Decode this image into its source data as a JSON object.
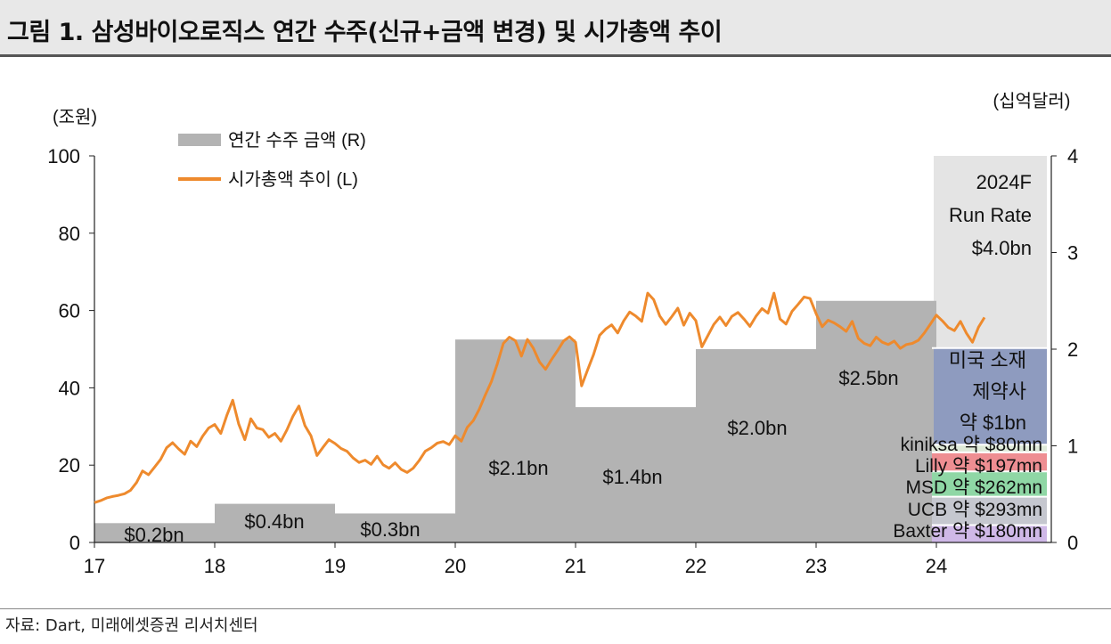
{
  "title": "그림 1. 삼성바이오로직스 연간 수주(신규+금액 변경) 및 시가총액 추이",
  "source": "자료: Dart, 미래에셋증권 리서치센터",
  "colors": {
    "bar": "#b3b3b3",
    "line": "#ee8a2d",
    "forecast": "#e4e4e4",
    "us": "#8e9bbf",
    "kiniksa": "#dfead9",
    "lilly": "#ee8e92",
    "msd": "#8fd7a5",
    "ucb": "#c5c7cf",
    "baxter": "#cfb8e7"
  },
  "chart_data": {
    "type": "bar+line",
    "left_axis_label": "(조원)",
    "right_axis_label": "(십억달러)",
    "left_ylim": [
      0,
      100
    ],
    "left_ticks": [
      "0",
      "20",
      "40",
      "60",
      "80",
      "100"
    ],
    "right_ylim": [
      0,
      4
    ],
    "right_ticks": [
      "0",
      "1",
      "2",
      "3",
      "4"
    ],
    "x_ticks": [
      "17",
      "18",
      "19",
      "20",
      "21",
      "22",
      "23",
      "24"
    ],
    "legend": {
      "bar": "연간 수주 금액 (R)",
      "line": "시가총액 추이 (L)"
    },
    "bars": [
      {
        "year": "17",
        "value": 0.2,
        "label": "$0.2bn"
      },
      {
        "year": "18",
        "value": 0.4,
        "label": "$0.4bn"
      },
      {
        "year": "19",
        "value": 0.3,
        "label": "$0.3bn"
      },
      {
        "year": "20",
        "value": 2.1,
        "label": "$2.1bn"
      },
      {
        "year": "21",
        "value": 1.4,
        "label": "$1.4bn"
      },
      {
        "year": "22",
        "value": 2.0,
        "label": "$2.0bn"
      },
      {
        "year": "23",
        "value": 2.5,
        "label": "$2.5bn"
      }
    ],
    "forecast": {
      "label_lines": [
        "2024F",
        "Run Rate",
        "$4.0bn"
      ],
      "total": 4.0,
      "stack": [
        {
          "name": "Baxter",
          "value": 0.18,
          "label": "Baxter 약 $180mn"
        },
        {
          "name": "UCB",
          "value": 0.293,
          "label": "UCB 약 $293mn"
        },
        {
          "name": "MSD",
          "value": 0.262,
          "label": "MSD 약 $262mn"
        },
        {
          "name": "Lilly",
          "value": 0.197,
          "label": "Lilly 약 $197mn"
        },
        {
          "name": "kiniksa",
          "value": 0.08,
          "label": "kiniksa 약 $80mn"
        },
        {
          "name": "미국 소재 제약사",
          "value": 1.0,
          "label_lines": [
            "미국 소재",
            "제약사",
            "약 $1bn"
          ]
        }
      ]
    },
    "market_cap_series": {
      "t": [
        17.0,
        17.05,
        17.1,
        17.15,
        17.2,
        17.25,
        17.3,
        17.35,
        17.4,
        17.45,
        17.5,
        17.55,
        17.6,
        17.65,
        17.7,
        17.75,
        17.8,
        17.85,
        17.9,
        17.95,
        18.0,
        18.05,
        18.1,
        18.15,
        18.2,
        18.25,
        18.3,
        18.35,
        18.4,
        18.45,
        18.5,
        18.55,
        18.6,
        18.65,
        18.7,
        18.75,
        18.8,
        18.85,
        18.9,
        18.95,
        19.0,
        19.05,
        19.1,
        19.15,
        19.2,
        19.25,
        19.3,
        19.35,
        19.4,
        19.45,
        19.5,
        19.55,
        19.6,
        19.65,
        19.7,
        19.75,
        19.8,
        19.85,
        19.9,
        19.95,
        20.0,
        20.05,
        20.1,
        20.15,
        20.2,
        20.25,
        20.3,
        20.35,
        20.4,
        20.45,
        20.5,
        20.55,
        20.6,
        20.65,
        20.7,
        20.75,
        20.8,
        20.85,
        20.9,
        20.95,
        21.0,
        21.05,
        21.1,
        21.15,
        21.2,
        21.25,
        21.3,
        21.35,
        21.4,
        21.45,
        21.5,
        21.55,
        21.6,
        21.65,
        21.7,
        21.75,
        21.8,
        21.85,
        21.9,
        21.95,
        22.0,
        22.05,
        22.1,
        22.15,
        22.2,
        22.25,
        22.3,
        22.35,
        22.4,
        22.45,
        22.5,
        22.55,
        22.6,
        22.65,
        22.7,
        22.75,
        22.8,
        22.85,
        22.9,
        22.95,
        23.0,
        23.05,
        23.1,
        23.15,
        23.2,
        23.25,
        23.3,
        23.35,
        23.4,
        23.45,
        23.5,
        23.55,
        23.6,
        23.65,
        23.7,
        23.75,
        23.8,
        23.85,
        23.9,
        23.95,
        24.0,
        24.05,
        24.1,
        24.15,
        24.2,
        24.25,
        24.3,
        24.35,
        24.4,
        24.45,
        24.5
      ],
      "v": [
        10.3,
        10.8,
        11.5,
        11.9,
        12.2,
        12.6,
        13.5,
        15.5,
        18.5,
        17.5,
        19.5,
        21.5,
        24.5,
        25.8,
        24.2,
        22.8,
        26.2,
        24.8,
        27.5,
        29.6,
        30.5,
        28.2,
        32.8,
        36.8,
        30.6,
        26.6,
        32.0,
        29.6,
        29.2,
        27.2,
        28.2,
        26.2,
        29.1,
        32.6,
        35.3,
        30.2,
        27.6,
        22.5,
        24.6,
        26.6,
        25.6,
        24.3,
        23.6,
        21.9,
        20.7,
        21.3,
        20.2,
        22.3,
        20.1,
        19.2,
        20.6,
        18.9,
        18.1,
        19.2,
        21.2,
        23.6,
        24.5,
        25.7,
        26.1,
        25.3,
        27.6,
        26.2,
        29.8,
        31.5,
        34.5,
        38.2,
        41.6,
        46.3,
        51.5,
        53.1,
        52.2,
        48.2,
        52.5,
        50.2,
        46.7,
        44.8,
        47.3,
        49.6,
        52.1,
        53.2,
        51.8,
        40.5,
        44.6,
        48.6,
        53.6,
        55.2,
        56.3,
        54.2,
        57.3,
        59.6,
        58.6,
        57.2,
        64.5,
        62.8,
        58.6,
        56.4,
        58.4,
        60.6,
        56.2,
        59.3,
        57.4,
        50.6,
        53.5,
        56.4,
        58.3,
        56.1,
        58.5,
        59.5,
        57.8,
        55.9,
        58.5,
        60.5,
        59.3,
        64.5,
        57.8,
        56.5,
        59.8,
        61.6,
        63.5,
        63.1,
        59.2,
        55.8,
        57.5,
        56.8,
        55.8,
        54.6,
        57.2,
        52.8,
        51.5,
        50.9,
        53.1,
        51.8,
        51.2,
        52.1,
        50.2,
        51.2,
        51.5,
        52.3,
        54.2,
        56.5,
        58.8,
        57.3,
        55.6,
        54.8,
        57.2,
        54.1,
        51.8,
        55.7,
        58.2
      ]
    }
  }
}
